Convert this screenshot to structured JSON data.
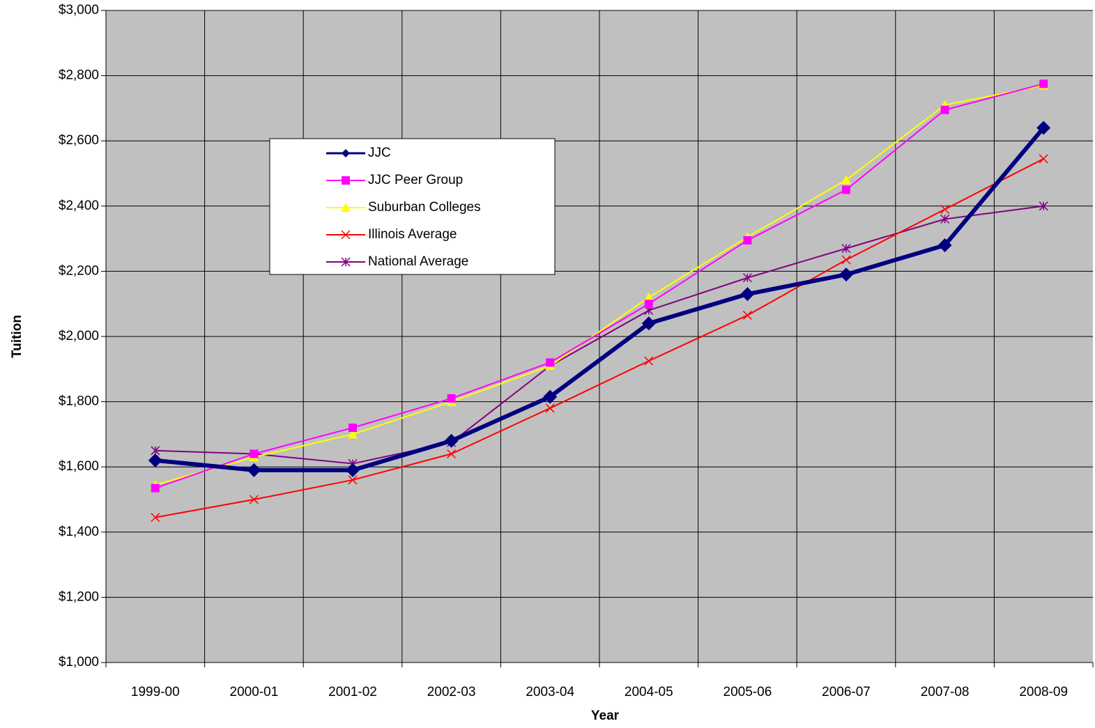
{
  "chart_data": {
    "type": "line",
    "xlabel": "Year",
    "ylabel": "Tuition",
    "categories": [
      "1999-00",
      "2000-01",
      "2001-02",
      "2002-03",
      "2003-04",
      "2004-05",
      "2005-06",
      "2006-07",
      "2007-08",
      "2008-09"
    ],
    "ylim": [
      1000,
      3000
    ],
    "yticks": [
      {
        "value": 1000,
        "label": "$1,000"
      },
      {
        "value": 1200,
        "label": "$1,200"
      },
      {
        "value": 1400,
        "label": "$1,400"
      },
      {
        "value": 1600,
        "label": "$1,600"
      },
      {
        "value": 1800,
        "label": "$1,800"
      },
      {
        "value": 2000,
        "label": "$2,000"
      },
      {
        "value": 2200,
        "label": "$2,200"
      },
      {
        "value": 2400,
        "label": "$2,400"
      },
      {
        "value": 2600,
        "label": "$2,600"
      },
      {
        "value": 2800,
        "label": "$2,800"
      },
      {
        "value": 3000,
        "label": "$3,000"
      }
    ],
    "grid": true,
    "background": "#C0C0C0",
    "series": [
      {
        "name": "JJC",
        "color": "#000080",
        "marker": "diamond",
        "line_width": 6,
        "values": [
          1620,
          1590,
          1590,
          1680,
          1815,
          2040,
          2130,
          2190,
          2280,
          2640
        ]
      },
      {
        "name": "JJC Peer Group",
        "color": "#FF00FF",
        "marker": "square",
        "line_width": 2,
        "values": [
          1535,
          1640,
          1720,
          1810,
          1920,
          2100,
          2295,
          2450,
          2695,
          2775
        ]
      },
      {
        "name": "Suburban Colleges",
        "color": "#FFFF00",
        "marker": "triangle",
        "line_width": 2,
        "values": [
          1545,
          1630,
          1700,
          1800,
          1910,
          2120,
          2305,
          2480,
          2710,
          2770
        ]
      },
      {
        "name": "Illinois Average",
        "color": "#FF0000",
        "marker": "x",
        "line_width": 2,
        "values": [
          1445,
          1500,
          1560,
          1640,
          1780,
          1925,
          2065,
          2235,
          2390,
          2545
        ]
      },
      {
        "name": "National Average",
        "color": "#800080",
        "marker": "star",
        "line_width": 2,
        "values": [
          1650,
          1640,
          1610,
          1675,
          1910,
          2080,
          2180,
          2270,
          2360,
          2400
        ]
      }
    ]
  }
}
